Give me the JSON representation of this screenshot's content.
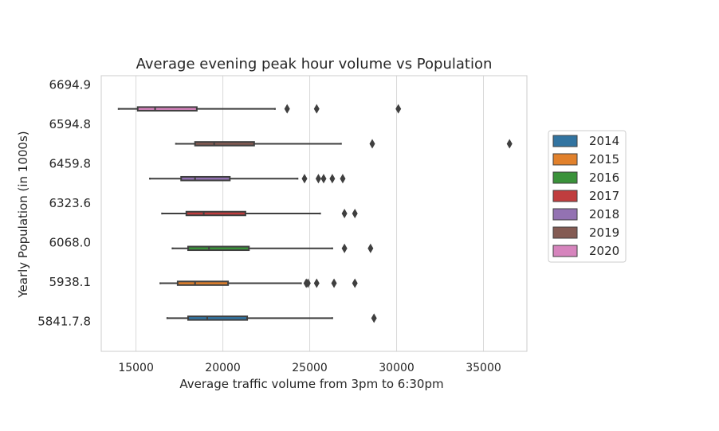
{
  "chart_data": {
    "type": "boxplot",
    "orientation": "horizontal",
    "title": "Average evening peak hour volume vs Population",
    "xlabel": "Average traffic volume from 3pm to 6:30pm",
    "ylabel": "Yearly Population (in 1000s)",
    "xlim": [
      13000,
      37500
    ],
    "xticks": [
      15000,
      20000,
      25000,
      30000,
      35000
    ],
    "xtick_labels": [
      "15000",
      "20000",
      "25000",
      "30000",
      "35000"
    ],
    "grid": true,
    "legend_position": "right",
    "categories": [
      "6694.9",
      "6594.8",
      "6459.8",
      "6323.6",
      "6068.0",
      "5938.1",
      "5841.7.8"
    ],
    "series": [
      {
        "name": "2014",
        "color": "#3274a1",
        "category_index": 6,
        "whislo": 16800,
        "q1": 18000,
        "med": 19100,
        "q3": 21400,
        "whishi": 26300,
        "fliers": [
          28700
        ]
      },
      {
        "name": "2015",
        "color": "#e1812c",
        "category_index": 5,
        "whislo": 16400,
        "q1": 17400,
        "med": 18400,
        "q3": 20300,
        "whishi": 24500,
        "fliers": [
          24800,
          24900,
          25400,
          26400,
          27600
        ]
      },
      {
        "name": "2016",
        "color": "#3a923a",
        "category_index": 4,
        "whislo": 17100,
        "q1": 18000,
        "med": 19200,
        "q3": 21500,
        "whishi": 26300,
        "fliers": [
          27000,
          28500
        ]
      },
      {
        "name": "2017",
        "color": "#c03d3e",
        "category_index": 3,
        "whislo": 16500,
        "q1": 17900,
        "med": 18900,
        "q3": 21300,
        "whishi": 25600,
        "fliers": [
          27000,
          27600
        ]
      },
      {
        "name": "2018",
        "color": "#9372b2",
        "category_index": 2,
        "whislo": 15800,
        "q1": 17600,
        "med": 18400,
        "q3": 20400,
        "whishi": 24300,
        "fliers": [
          24700,
          25500,
          25800,
          26300,
          26900
        ]
      },
      {
        "name": "2019",
        "color": "#845b53",
        "category_index": 1,
        "whislo": 17300,
        "q1": 18400,
        "med": 19500,
        "q3": 21800,
        "whishi": 26800,
        "fliers": [
          28600,
          36500
        ]
      },
      {
        "name": "2020",
        "color": "#d684bd",
        "category_index": 0,
        "whislo": 14000,
        "q1": 15100,
        "med": 16100,
        "q3": 18500,
        "whishi": 23000,
        "fliers": [
          23700,
          25400,
          30100
        ]
      }
    ]
  }
}
